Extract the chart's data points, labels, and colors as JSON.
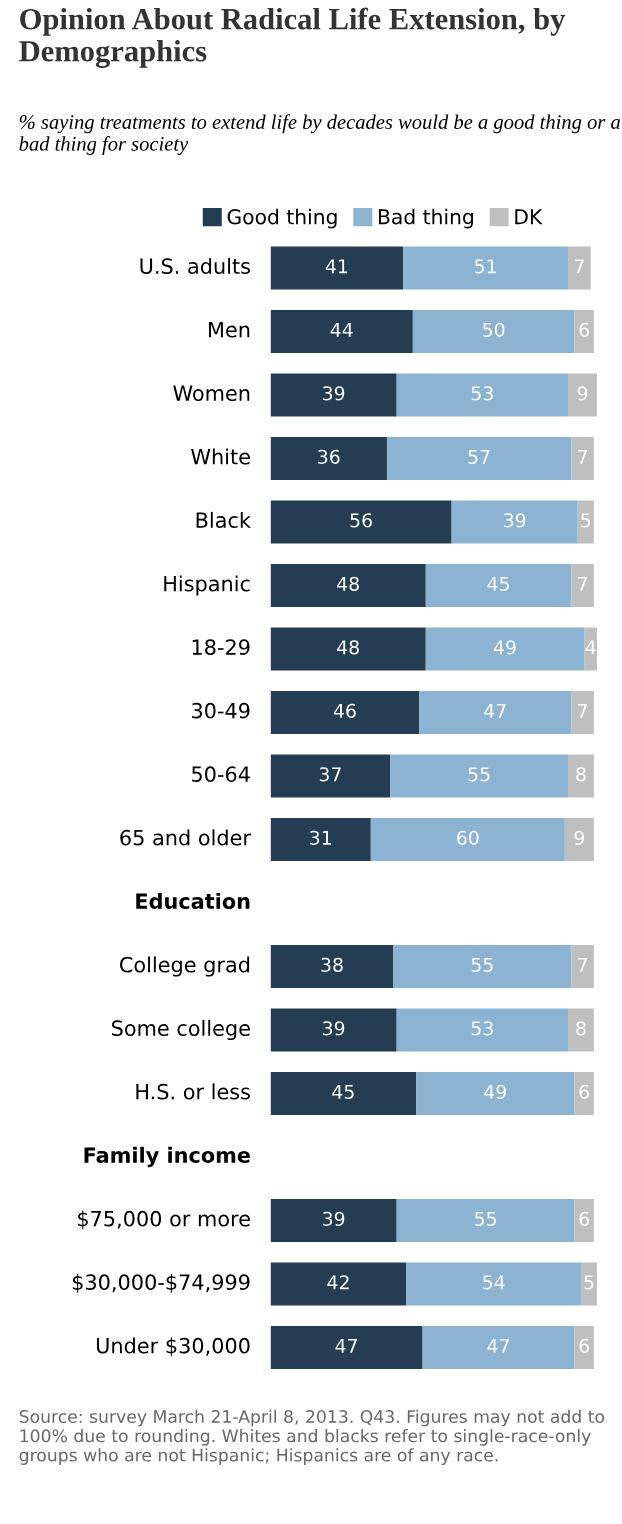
{
  "chart_data": {
    "type": "bar",
    "orientation": "horizontal",
    "stacked": true,
    "data_labels": true,
    "legend": "top",
    "xlim": [
      0,
      101
    ],
    "title": "Opinion About Radical Life Extension, by Demographics",
    "subtitle": "% saying treatments to extend life by decades would be a good thing or a bad thing for society",
    "categories": [
      "U.S. adults",
      "Men",
      "Women",
      "White",
      "Black",
      "Hispanic",
      "18-29",
      "30-49",
      "50-64",
      "65 and older",
      "Education",
      "College grad",
      "Some college",
      "H.S. or less",
      "Family income",
      "$75,000 or more",
      "$30,000-$74,999",
      "Under $30,000"
    ],
    "series": [
      {
        "name": "Good thing",
        "color": "#253d52",
        "values": [
          41,
          44,
          39,
          36,
          56,
          48,
          48,
          46,
          37,
          31,
          null,
          38,
          39,
          45,
          null,
          39,
          42,
          47
        ]
      },
      {
        "name": "Bad thing",
        "color": "#8db3d3",
        "values": [
          51,
          50,
          53,
          57,
          39,
          45,
          49,
          47,
          55,
          60,
          null,
          55,
          53,
          49,
          null,
          55,
          54,
          47
        ]
      },
      {
        "name": "DK",
        "color": "#bfbfbf",
        "values": [
          7,
          6,
          9,
          7,
          5,
          7,
          4,
          7,
          8,
          9,
          null,
          7,
          8,
          6,
          null,
          6,
          5,
          6
        ]
      }
    ],
    "annotations": [
      "Source: survey March 21-April 8, 2013. Q43. Figures may not add to 100% due to rounding. Whites and blacks refer to single-race-only groups who are not Hispanic; Hispanics are of any race."
    ]
  }
}
